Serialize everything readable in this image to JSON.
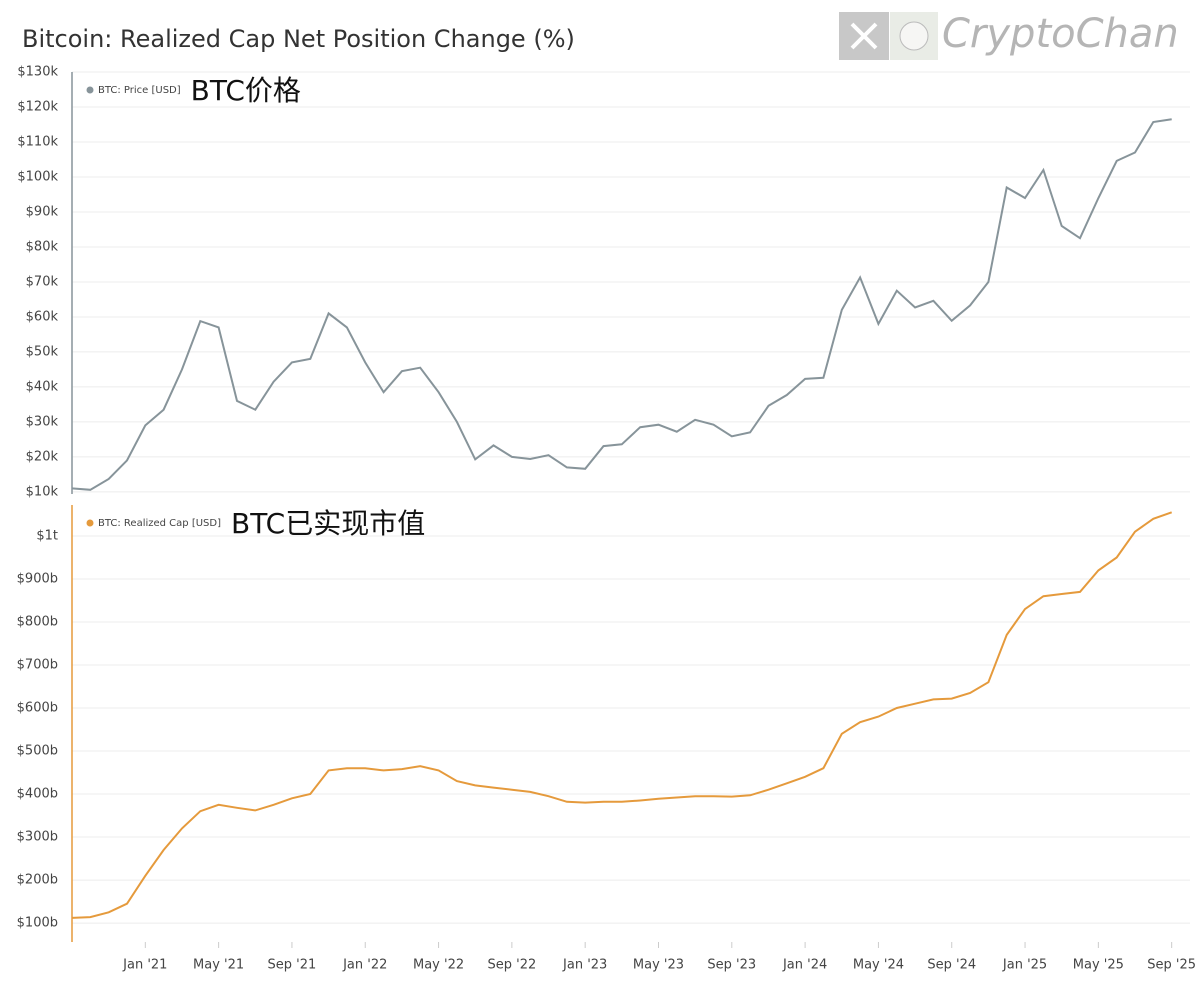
{
  "title": "Bitcoin: Realized Cap Net Position Change (%)",
  "watermark": "CryptoChan",
  "chart_data": [
    {
      "type": "line",
      "legend": "top-left",
      "annotation": "BTC价格",
      "x": [
        "2020-09",
        "2020-10",
        "2020-11",
        "2020-12",
        "2021-01",
        "2021-02",
        "2021-03",
        "2021-04",
        "2021-05",
        "2021-06",
        "2021-07",
        "2021-08",
        "2021-09",
        "2021-10",
        "2021-11",
        "2021-12",
        "2022-01",
        "2022-02",
        "2022-03",
        "2022-04",
        "2022-05",
        "2022-06",
        "2022-07",
        "2022-08",
        "2022-09",
        "2022-10",
        "2022-11",
        "2022-12",
        "2023-01",
        "2023-02",
        "2023-03",
        "2023-04",
        "2023-05",
        "2023-06",
        "2023-07",
        "2023-08",
        "2023-09",
        "2023-10",
        "2023-11",
        "2023-12",
        "2024-01",
        "2024-02",
        "2024-03",
        "2024-04",
        "2024-05",
        "2024-06",
        "2024-07",
        "2024-08",
        "2024-09",
        "2024-10",
        "2024-11",
        "2024-12",
        "2025-01",
        "2025-02",
        "2025-03",
        "2025-04",
        "2025-05",
        "2025-06",
        "2025-07",
        "2025-08",
        "2025-09"
      ],
      "series": [
        {
          "name": "BTC: Price [USD]",
          "color": "#87949a",
          "values": [
            11000,
            10600,
            13700,
            19000,
            29000,
            33500,
            45000,
            58800,
            57000,
            36000,
            33500,
            41500,
            47000,
            48000,
            61000,
            57000,
            47000,
            38500,
            44500,
            45500,
            38500,
            30000,
            19300,
            23300,
            20000,
            19400,
            20500,
            17000,
            16600,
            23100,
            23600,
            28500,
            29200,
            27200,
            30600,
            29200,
            25900,
            27000,
            34600,
            37700,
            42300,
            42600,
            62000,
            71300,
            58000,
            67500,
            62700,
            64600,
            58900,
            63300,
            70000,
            97000,
            94000,
            102000,
            86000,
            82500,
            94000,
            104600,
            107000,
            115700,
            116500
          ]
        }
      ],
      "xlim": [
        "2020-09",
        "2025-10"
      ],
      "ylim": [
        9400,
        130000
      ],
      "yticks": [
        {
          "value": 10000,
          "label": "$10k"
        },
        {
          "value": 20000,
          "label": "$20k"
        },
        {
          "value": 30000,
          "label": "$30k"
        },
        {
          "value": 40000,
          "label": "$40k"
        },
        {
          "value": 50000,
          "label": "$50k"
        },
        {
          "value": 60000,
          "label": "$60k"
        },
        {
          "value": 70000,
          "label": "$70k"
        },
        {
          "value": 80000,
          "label": "$80k"
        },
        {
          "value": 90000,
          "label": "$90k"
        },
        {
          "value": 100000,
          "label": "$100k"
        },
        {
          "value": 110000,
          "label": "$110k"
        },
        {
          "value": 120000,
          "label": "$120k"
        },
        {
          "value": 130000,
          "label": "$130k"
        }
      ],
      "grid": true
    },
    {
      "type": "line",
      "legend": "top-left",
      "annotation": "BTC已实现市值",
      "x": [
        "2020-09",
        "2020-10",
        "2020-11",
        "2020-12",
        "2021-01",
        "2021-02",
        "2021-03",
        "2021-04",
        "2021-05",
        "2021-06",
        "2021-07",
        "2021-08",
        "2021-09",
        "2021-10",
        "2021-11",
        "2021-12",
        "2022-01",
        "2022-02",
        "2022-03",
        "2022-04",
        "2022-05",
        "2022-06",
        "2022-07",
        "2022-08",
        "2022-09",
        "2022-10",
        "2022-11",
        "2022-12",
        "2023-01",
        "2023-02",
        "2023-03",
        "2023-04",
        "2023-05",
        "2023-06",
        "2023-07",
        "2023-08",
        "2023-09",
        "2023-10",
        "2023-11",
        "2023-12",
        "2024-01",
        "2024-02",
        "2024-03",
        "2024-04",
        "2024-05",
        "2024-06",
        "2024-07",
        "2024-08",
        "2024-09",
        "2024-10",
        "2024-11",
        "2024-12",
        "2025-01",
        "2025-02",
        "2025-03",
        "2025-04",
        "2025-05",
        "2025-06",
        "2025-07",
        "2025-08",
        "2025-09"
      ],
      "series": [
        {
          "name": "BTC: Realized Cap [USD]",
          "color": "#e59a3c",
          "values": [
            112,
            114,
            125,
            145,
            210,
            270,
            320,
            360,
            375,
            368,
            362,
            375,
            390,
            400,
            455,
            460,
            460,
            455,
            458,
            465,
            455,
            430,
            420,
            415,
            410,
            405,
            395,
            382,
            380,
            382,
            382,
            385,
            389,
            392,
            395,
            395,
            394,
            397,
            410,
            425,
            440,
            460,
            540,
            567,
            580,
            600,
            610,
            620,
            622,
            635,
            660,
            770,
            830,
            860,
            865,
            870,
            920,
            950,
            1010,
            1040,
            1055
          ]
        }
      ],
      "xlim": [
        "2020-09",
        "2025-10"
      ],
      "ylim": [
        56,
        1072
      ],
      "yticks": [
        {
          "value": 100,
          "label": "$100b"
        },
        {
          "value": 200,
          "label": "$200b"
        },
        {
          "value": 300,
          "label": "$300b"
        },
        {
          "value": 400,
          "label": "$400b"
        },
        {
          "value": 500,
          "label": "$500b"
        },
        {
          "value": 600,
          "label": "$600b"
        },
        {
          "value": 700,
          "label": "$700b"
        },
        {
          "value": 800,
          "label": "$800b"
        },
        {
          "value": 900,
          "label": "$900b"
        },
        {
          "value": 1000,
          "label": "$1t"
        }
      ],
      "xticks": [
        {
          "value": "2021-01",
          "label": "Jan '21"
        },
        {
          "value": "2021-05",
          "label": "May '21"
        },
        {
          "value": "2021-09",
          "label": "Sep '21"
        },
        {
          "value": "2022-01",
          "label": "Jan '22"
        },
        {
          "value": "2022-05",
          "label": "May '22"
        },
        {
          "value": "2022-09",
          "label": "Sep '22"
        },
        {
          "value": "2023-01",
          "label": "Jan '23"
        },
        {
          "value": "2023-05",
          "label": "May '23"
        },
        {
          "value": "2023-09",
          "label": "Sep '23"
        },
        {
          "value": "2024-01",
          "label": "Jan '24"
        },
        {
          "value": "2024-05",
          "label": "May '24"
        },
        {
          "value": "2024-09",
          "label": "Sep '24"
        },
        {
          "value": "2025-01",
          "label": "Jan '25"
        },
        {
          "value": "2025-05",
          "label": "May '25"
        },
        {
          "value": "2025-09",
          "label": "Sep '25"
        }
      ],
      "grid": true
    }
  ]
}
